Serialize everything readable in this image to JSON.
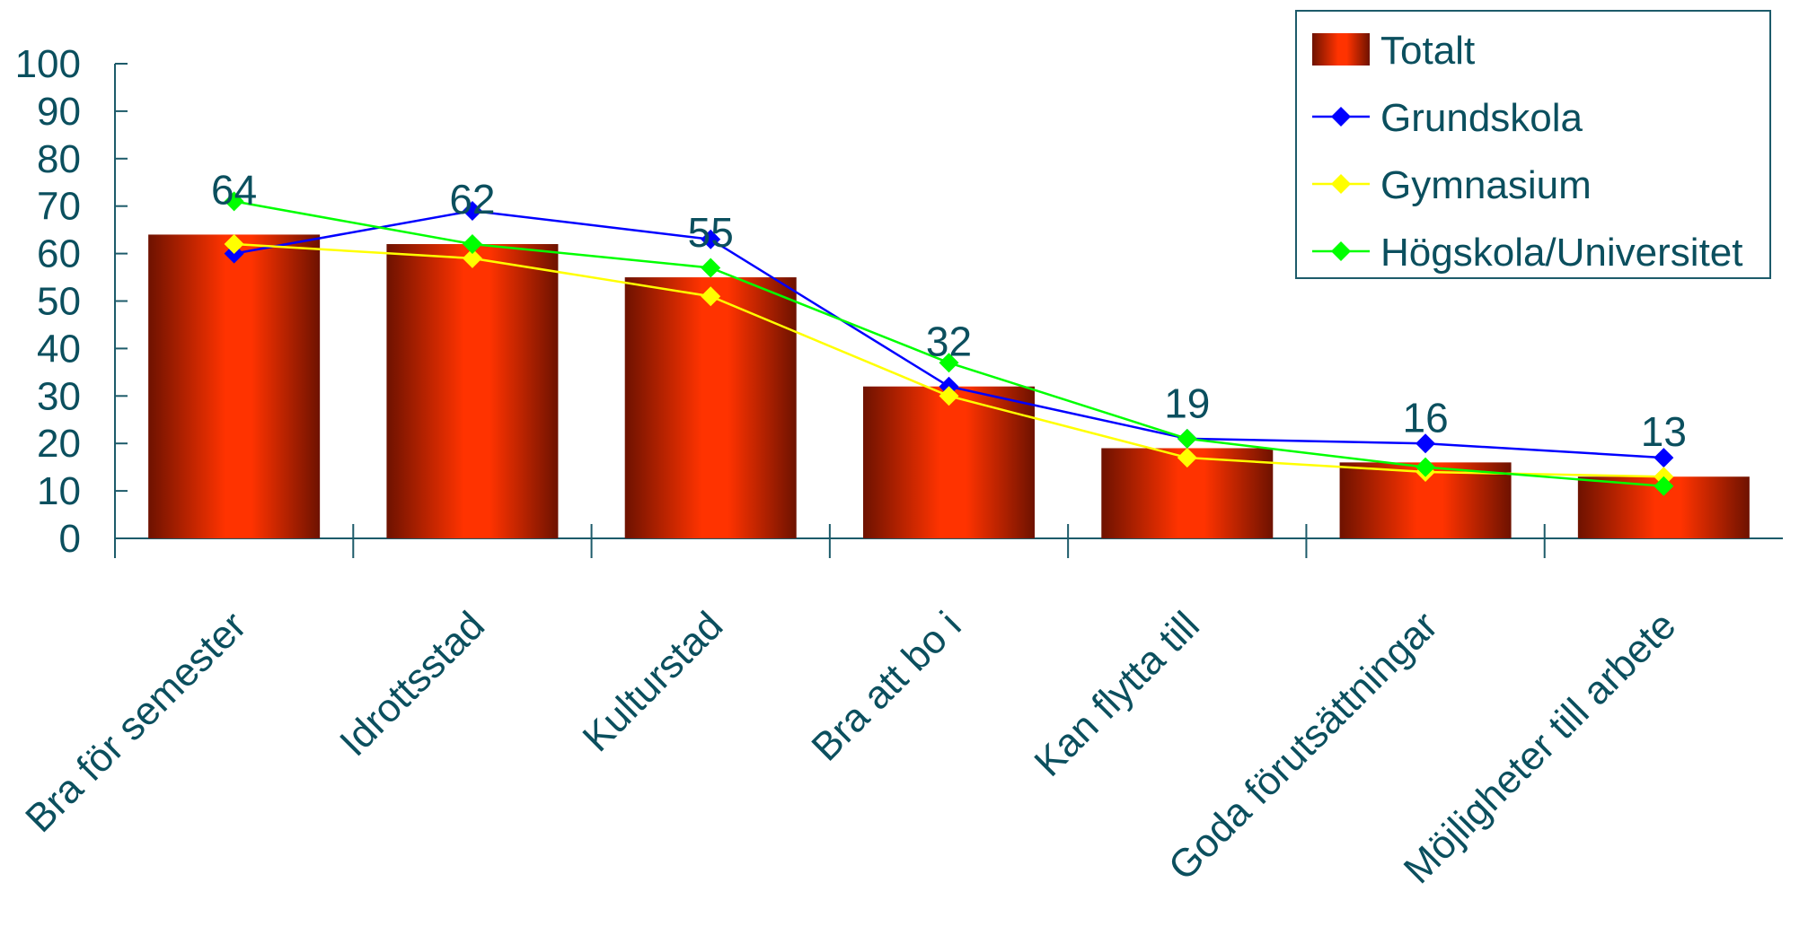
{
  "chart_data": {
    "type": "bar",
    "categories": [
      "Bra för semester",
      "Idrottsstad",
      "Kulturstad",
      "Bra att bo i",
      "Kan flytta till",
      "Goda förutsättningar",
      "Möjligheter till arbete"
    ],
    "series": [
      {
        "name": "Totalt",
        "kind": "bar",
        "color": "#ff3300",
        "values": [
          64,
          62,
          55,
          32,
          19,
          16,
          13
        ],
        "labels": [
          "64",
          "62",
          "55",
          "32",
          "19",
          "16",
          "13"
        ]
      },
      {
        "name": "Grundskola",
        "kind": "line",
        "color": "#0000ff",
        "values": [
          60,
          69,
          63,
          32,
          21,
          20,
          17
        ]
      },
      {
        "name": "Gymnasium",
        "kind": "line",
        "color": "#ffff00",
        "values": [
          62,
          59,
          51,
          30,
          17,
          14,
          13
        ]
      },
      {
        "name": "Högskola/Universitet",
        "kind": "line",
        "color": "#00ff00",
        "values": [
          71,
          62,
          57,
          37,
          21,
          15,
          11
        ]
      }
    ],
    "yticks": [
      "0",
      "10",
      "20",
      "30",
      "40",
      "50",
      "60",
      "70",
      "80",
      "90",
      "100"
    ],
    "ylim": [
      0,
      100
    ],
    "grid": false,
    "legend": "top-right",
    "axis_color": "#1d5b6a",
    "text_color": "#0b4f5e"
  }
}
